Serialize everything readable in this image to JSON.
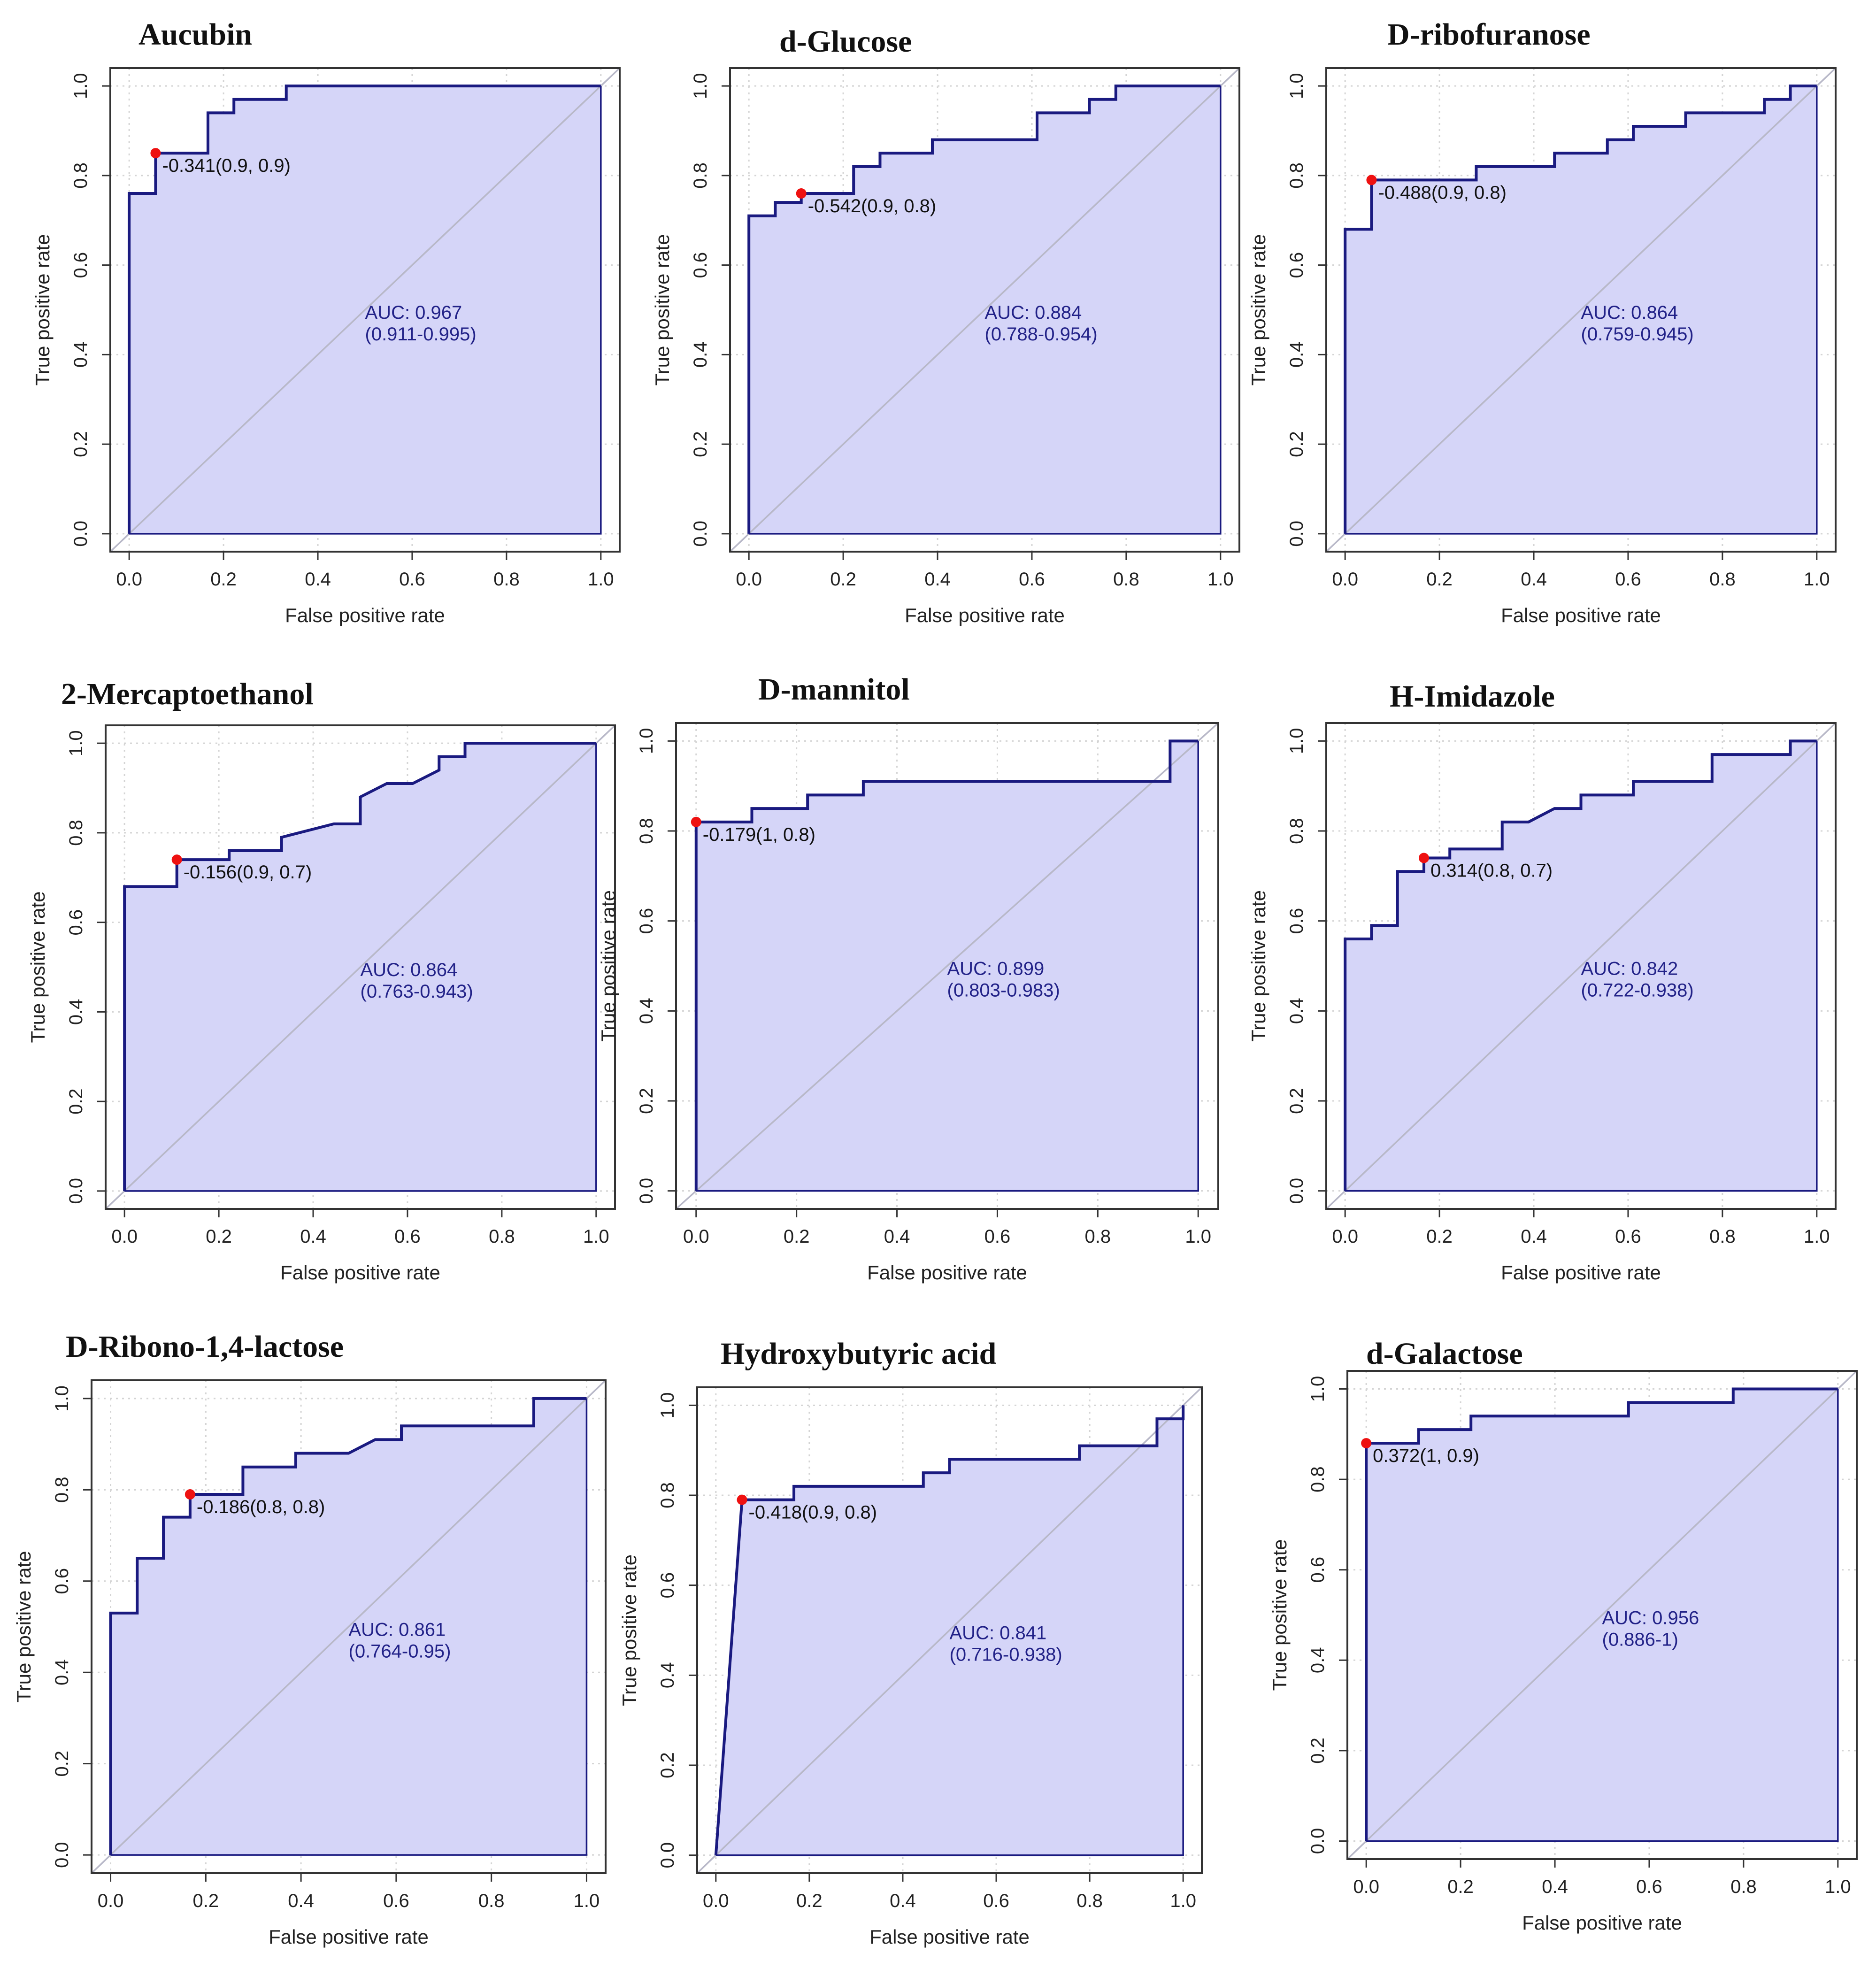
{
  "figure": {
    "x_axis_label": "False positive rate",
    "y_axis_label": "True positive rate",
    "x_ticks": [
      "0.0",
      "0.2",
      "0.4",
      "0.6",
      "0.8",
      "1.0"
    ],
    "y_ticks": [
      "0.0",
      "0.2",
      "0.4",
      "0.6",
      "0.8",
      "1.0"
    ],
    "colors": {
      "curve": "#1a1a80",
      "fill": "#d5d5f8",
      "diagonal": "#b8b8c8",
      "grid": "#d4d4d4",
      "frame": "#333333",
      "point": "#ee1111",
      "auc_text": "#222288"
    }
  },
  "chart_data": [
    {
      "type": "line",
      "title": "Aucubin",
      "xlabel": "False positive rate",
      "ylabel": "True positive rate",
      "xlim": [
        0,
        1
      ],
      "ylim": [
        0,
        1
      ],
      "auc": "AUC: 0.967",
      "ci": "(0.911-0.995)",
      "threshold_label": "-0.341(0.9, 0.9)",
      "threshold_point": [
        0.056,
        0.85
      ],
      "roc": [
        [
          0,
          0
        ],
        [
          0,
          0.76
        ],
        [
          0.056,
          0.76
        ],
        [
          0.056,
          0.85
        ],
        [
          0.167,
          0.85
        ],
        [
          0.167,
          0.94
        ],
        [
          0.222,
          0.94
        ],
        [
          0.222,
          0.97
        ],
        [
          0.333,
          0.97
        ],
        [
          0.333,
          1
        ],
        [
          1,
          1
        ]
      ]
    },
    {
      "type": "line",
      "title": "d-Glucose",
      "xlabel": "False positive rate",
      "ylabel": "True positive rate",
      "xlim": [
        0,
        1
      ],
      "ylim": [
        0,
        1
      ],
      "auc": "AUC: 0.884",
      "ci": "(0.788-0.954)",
      "threshold_label": "-0.542(0.9, 0.8)",
      "threshold_point": [
        0.111,
        0.76
      ],
      "roc": [
        [
          0,
          0
        ],
        [
          0,
          0.71
        ],
        [
          0.056,
          0.71
        ],
        [
          0.056,
          0.74
        ],
        [
          0.111,
          0.74
        ],
        [
          0.111,
          0.76
        ],
        [
          0.222,
          0.76
        ],
        [
          0.222,
          0.82
        ],
        [
          0.278,
          0.82
        ],
        [
          0.278,
          0.85
        ],
        [
          0.389,
          0.85
        ],
        [
          0.389,
          0.88
        ],
        [
          0.611,
          0.88
        ],
        [
          0.611,
          0.94
        ],
        [
          0.722,
          0.94
        ],
        [
          0.722,
          0.97
        ],
        [
          0.778,
          0.97
        ],
        [
          0.778,
          1
        ],
        [
          1,
          1
        ]
      ]
    },
    {
      "type": "line",
      "title": "D-ribofuranose",
      "xlabel": "False positive rate",
      "ylabel": "True positive rate",
      "xlim": [
        0,
        1
      ],
      "ylim": [
        0,
        1
      ],
      "auc": "AUC: 0.864",
      "ci": "(0.759-0.945)",
      "threshold_label": "-0.488(0.9, 0.8)",
      "threshold_point": [
        0.056,
        0.79
      ],
      "roc": [
        [
          0,
          0
        ],
        [
          0,
          0.68
        ],
        [
          0.056,
          0.68
        ],
        [
          0.056,
          0.79
        ],
        [
          0.278,
          0.79
        ],
        [
          0.278,
          0.82
        ],
        [
          0.444,
          0.82
        ],
        [
          0.444,
          0.85
        ],
        [
          0.556,
          0.85
        ],
        [
          0.556,
          0.88
        ],
        [
          0.611,
          0.88
        ],
        [
          0.611,
          0.91
        ],
        [
          0.722,
          0.91
        ],
        [
          0.722,
          0.94
        ],
        [
          0.889,
          0.94
        ],
        [
          0.889,
          0.97
        ],
        [
          0.944,
          0.97
        ],
        [
          0.944,
          1
        ],
        [
          1,
          1
        ]
      ]
    },
    {
      "type": "line",
      "title": "2-Mercaptoethanol",
      "xlabel": "False positive rate",
      "ylabel": "True positive rate",
      "xlim": [
        0,
        1
      ],
      "ylim": [
        0,
        1
      ],
      "auc": "AUC: 0.864",
      "ci": "(0.763-0.943)",
      "threshold_label": "-0.156(0.9, 0.7)",
      "threshold_point": [
        0.111,
        0.74
      ],
      "roc": [
        [
          0,
          0
        ],
        [
          0,
          0.68
        ],
        [
          0.111,
          0.68
        ],
        [
          0.111,
          0.74
        ],
        [
          0.222,
          0.74
        ],
        [
          0.222,
          0.76
        ],
        [
          0.333,
          0.76
        ],
        [
          0.333,
          0.79
        ],
        [
          0.444,
          0.82
        ],
        [
          0.5,
          0.82
        ],
        [
          0.5,
          0.88
        ],
        [
          0.556,
          0.91
        ],
        [
          0.611,
          0.91
        ],
        [
          0.667,
          0.94
        ],
        [
          0.667,
          0.97
        ],
        [
          0.722,
          0.97
        ],
        [
          0.722,
          1
        ],
        [
          1,
          1
        ]
      ]
    },
    {
      "type": "line",
      "title": "D-mannitol",
      "xlabel": "False positive rate",
      "ylabel": "True positive rate",
      "xlim": [
        0,
        1
      ],
      "ylim": [
        0,
        1
      ],
      "auc": "AUC: 0.899",
      "ci": "(0.803-0.983)",
      "threshold_label": "-0.179(1, 0.8)",
      "threshold_point": [
        0,
        0.82
      ],
      "roc": [
        [
          0,
          0
        ],
        [
          0,
          0.82
        ],
        [
          0.111,
          0.82
        ],
        [
          0.111,
          0.85
        ],
        [
          0.222,
          0.85
        ],
        [
          0.222,
          0.88
        ],
        [
          0.333,
          0.88
        ],
        [
          0.333,
          0.91
        ],
        [
          0.944,
          0.91
        ],
        [
          0.944,
          1
        ],
        [
          1,
          1
        ]
      ]
    },
    {
      "type": "line",
      "title": "H-Imidazole",
      "xlabel": "False positive rate",
      "ylabel": "True positive rate",
      "xlim": [
        0,
        1
      ],
      "ylim": [
        0,
        1
      ],
      "auc": "AUC: 0.842",
      "ci": "(0.722-0.938)",
      "threshold_label": "0.314(0.8, 0.7)",
      "threshold_point": [
        0.167,
        0.74
      ],
      "roc": [
        [
          0,
          0
        ],
        [
          0,
          0.56
        ],
        [
          0.056,
          0.56
        ],
        [
          0.056,
          0.59
        ],
        [
          0.111,
          0.59
        ],
        [
          0.111,
          0.71
        ],
        [
          0.167,
          0.71
        ],
        [
          0.167,
          0.74
        ],
        [
          0.222,
          0.74
        ],
        [
          0.222,
          0.76
        ],
        [
          0.333,
          0.76
        ],
        [
          0.333,
          0.82
        ],
        [
          0.389,
          0.82
        ],
        [
          0.444,
          0.85
        ],
        [
          0.5,
          0.85
        ],
        [
          0.5,
          0.88
        ],
        [
          0.611,
          0.88
        ],
        [
          0.611,
          0.91
        ],
        [
          0.778,
          0.91
        ],
        [
          0.778,
          0.97
        ],
        [
          0.944,
          0.97
        ],
        [
          0.944,
          1
        ],
        [
          1,
          1
        ]
      ]
    },
    {
      "type": "line",
      "title": "D-Ribono-1,4-lactose",
      "xlabel": "False positive rate",
      "ylabel": "True positive rate",
      "xlim": [
        0,
        1
      ],
      "ylim": [
        0,
        1
      ],
      "auc": "AUC: 0.861",
      "ci": "(0.764-0.95)",
      "threshold_label": "-0.186(0.8, 0.8)",
      "threshold_point": [
        0.167,
        0.79
      ],
      "roc": [
        [
          0,
          0
        ],
        [
          0,
          0.53
        ],
        [
          0.056,
          0.53
        ],
        [
          0.056,
          0.65
        ],
        [
          0.111,
          0.65
        ],
        [
          0.111,
          0.74
        ],
        [
          0.167,
          0.74
        ],
        [
          0.167,
          0.79
        ],
        [
          0.278,
          0.79
        ],
        [
          0.278,
          0.85
        ],
        [
          0.389,
          0.85
        ],
        [
          0.389,
          0.88
        ],
        [
          0.5,
          0.88
        ],
        [
          0.556,
          0.91
        ],
        [
          0.611,
          0.91
        ],
        [
          0.611,
          0.94
        ],
        [
          0.889,
          0.94
        ],
        [
          0.889,
          1
        ],
        [
          1,
          1
        ]
      ]
    },
    {
      "type": "line",
      "title": "Hydroxybutyric acid",
      "xlabel": "False positive rate",
      "ylabel": "True positive rate",
      "xlim": [
        0,
        1
      ],
      "ylim": [
        0,
        1
      ],
      "auc": "AUC: 0.841",
      "ci": "(0.716-0.938)",
      "threshold_label": "-0.418(0.9, 0.8)",
      "threshold_point": [
        0.056,
        0.79
      ],
      "roc": [
        [
          0,
          0
        ],
        [
          0.056,
          0.79
        ],
        [
          0.167,
          0.79
        ],
        [
          0.167,
          0.82
        ],
        [
          0.444,
          0.82
        ],
        [
          0.444,
          0.85
        ],
        [
          0.5,
          0.85
        ],
        [
          0.5,
          0.88
        ],
        [
          0.778,
          0.88
        ],
        [
          0.778,
          0.91
        ],
        [
          0.944,
          0.91
        ],
        [
          0.944,
          0.97
        ],
        [
          1,
          0.97
        ],
        [
          1,
          1
        ]
      ]
    },
    {
      "type": "line",
      "title": "d-Galactose",
      "xlabel": "False positive rate",
      "ylabel": "True positive rate",
      "xlim": [
        0,
        1
      ],
      "ylim": [
        0,
        1
      ],
      "auc": "AUC: 0.956",
      "ci": "(0.886-1)",
      "threshold_label": "0.372(1, 0.9)",
      "threshold_point": [
        0,
        0.88
      ],
      "roc": [
        [
          0,
          0
        ],
        [
          0,
          0.88
        ],
        [
          0.111,
          0.88
        ],
        [
          0.111,
          0.91
        ],
        [
          0.222,
          0.91
        ],
        [
          0.222,
          0.94
        ],
        [
          0.556,
          0.94
        ],
        [
          0.556,
          0.97
        ],
        [
          0.778,
          0.97
        ],
        [
          0.778,
          1
        ],
        [
          1,
          1
        ]
      ]
    }
  ]
}
